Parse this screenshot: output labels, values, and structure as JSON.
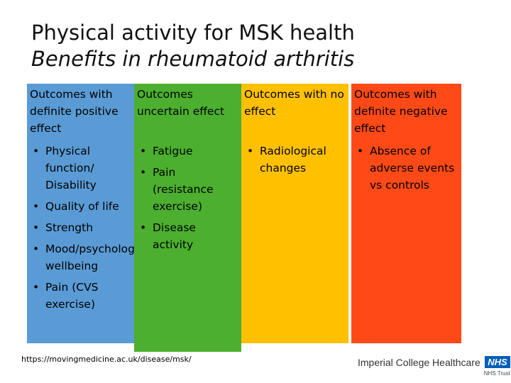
{
  "title": {
    "line1": "Physical activity for MSK health",
    "line2": "Benefits in rheumatoid arthritis"
  },
  "columns": [
    {
      "heading": "Outcomes with definite positive effect",
      "color": "#5a9bd5",
      "items": [
        "Physical function/ Disability",
        "Quality of life",
        "Strength",
        "Mood/psychological wellbeing",
        "Pain (CVS exercise)"
      ]
    },
    {
      "heading": "Outcomes uncertain effect",
      "color": "#4caf2f",
      "items": [
        "Fatigue",
        "Pain (resistance exercise)",
        "Disease activity"
      ]
    },
    {
      "heading": "Outcomes with no effect",
      "color": "#ffc000",
      "items": [
        "Radiological changes"
      ]
    },
    {
      "heading": "Outcomes with definite negative effect",
      "color": "#ff4a17",
      "items": [
        "Absence of adverse events vs controls"
      ]
    }
  ],
  "footer": {
    "link": "https://movingmedicine.ac.uk/disease/msk/",
    "logo_name": "Imperial College Healthcare",
    "logo_badge": "NHS",
    "logo_trust": "NHS Trust"
  }
}
